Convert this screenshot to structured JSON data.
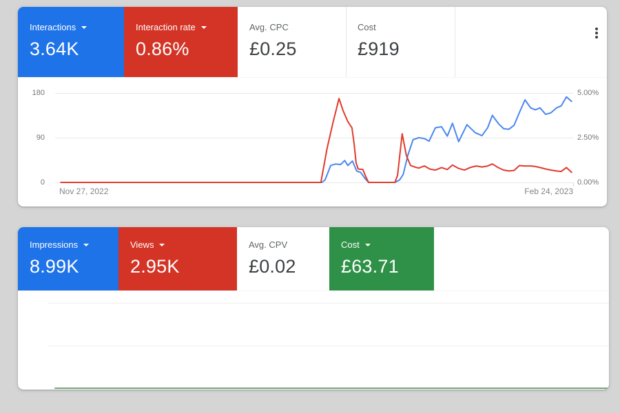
{
  "colors": {
    "page_bg": "#d5d5d5",
    "card_bg": "#ffffff",
    "tile_blue": "#1e73e8",
    "tile_red": "#d33426",
    "tile_green": "#2f9148",
    "line_blue": "#4a86ee",
    "line_red": "#e03a2c",
    "line_green": "#74a478",
    "axis_text": "#757575"
  },
  "top_card": {
    "tiles": [
      {
        "label": "Interactions",
        "value": "3.64K",
        "dropdown": true
      },
      {
        "label": "Interaction rate",
        "value": "0.86%",
        "dropdown": true
      },
      {
        "label": "Avg. CPC",
        "value": "£0.25",
        "dropdown": false
      },
      {
        "label": "Cost",
        "value": "£919",
        "dropdown": false
      }
    ],
    "menu_icon": "kebab-menu"
  },
  "bottom_card": {
    "tiles": [
      {
        "label": "Impressions",
        "value": "8.99K",
        "dropdown": true
      },
      {
        "label": "Views",
        "value": "2.95K",
        "dropdown": true
      },
      {
        "label": "Avg. CPV",
        "value": "£0.02",
        "dropdown": false
      },
      {
        "label": "Cost",
        "value": "£63.71",
        "dropdown": true
      }
    ]
  },
  "chart_data": [
    {
      "type": "line",
      "title": "",
      "grid": true,
      "legend": "none",
      "x_axis": {
        "start_label": "Nov 27, 2022",
        "end_label": "Feb 24, 2023"
      },
      "left_axis": {
        "ticks": [
          "180",
          "90",
          "0"
        ],
        "min": 0,
        "max": 180
      },
      "right_axis": {
        "ticks": [
          "5.00%",
          "2.50%",
          "0.00%"
        ],
        "min": 0,
        "max": 5
      },
      "series": [
        {
          "name": "Interactions",
          "axis": "left",
          "color": "#4a86ee",
          "points": [
            [
              1.1,
              0
            ],
            [
              51.5,
              0
            ],
            [
              52.1,
              5
            ],
            [
              53.2,
              34
            ],
            [
              54.1,
              37
            ],
            [
              55.1,
              36
            ],
            [
              55.9,
              44
            ],
            [
              56.5,
              34
            ],
            [
              57.4,
              43
            ],
            [
              58.2,
              23
            ],
            [
              59.0,
              20
            ],
            [
              59.8,
              8
            ],
            [
              60.5,
              0
            ],
            [
              65.6,
              0
            ],
            [
              66.5,
              5
            ],
            [
              67.2,
              16
            ],
            [
              68.1,
              55
            ],
            [
              69.1,
              86
            ],
            [
              70.2,
              90
            ],
            [
              71.3,
              88
            ],
            [
              72.2,
              83
            ],
            [
              73.4,
              110
            ],
            [
              74.6,
              112
            ],
            [
              75.7,
              93
            ],
            [
              76.7,
              119
            ],
            [
              77.9,
              82
            ],
            [
              79.5,
              116
            ],
            [
              81.1,
              100
            ],
            [
              82.4,
              94
            ],
            [
              83.5,
              110
            ],
            [
              84.4,
              135
            ],
            [
              85.6,
              118
            ],
            [
              86.6,
              108
            ],
            [
              87.6,
              107
            ],
            [
              88.6,
              115
            ],
            [
              89.6,
              140
            ],
            [
              90.7,
              166
            ],
            [
              91.8,
              150
            ],
            [
              92.7,
              146
            ],
            [
              93.6,
              150
            ],
            [
              94.7,
              137
            ],
            [
              95.7,
              140
            ],
            [
              96.8,
              150
            ],
            [
              97.7,
              154
            ],
            [
              98.7,
              172
            ],
            [
              99.7,
              163
            ]
          ]
        },
        {
          "name": "Interaction rate",
          "axis": "right",
          "color": "#e03a2c",
          "points": [
            [
              1.1,
              0
            ],
            [
              51.3,
              0
            ],
            [
              52.5,
              1.9
            ],
            [
              53.6,
              3.3
            ],
            [
              54.8,
              4.69
            ],
            [
              55.6,
              4.0
            ],
            [
              56.5,
              3.4
            ],
            [
              57.3,
              3.05
            ],
            [
              57.7,
              2.2
            ],
            [
              58.1,
              1.1
            ],
            [
              58.5,
              0.75
            ],
            [
              59.4,
              0.72
            ],
            [
              60.0,
              0.3
            ],
            [
              60.5,
              0
            ],
            [
              65.6,
              0
            ],
            [
              66.1,
              0.4
            ],
            [
              67.0,
              2.72
            ],
            [
              67.8,
              1.5
            ],
            [
              68.6,
              0.95
            ],
            [
              69.4,
              0.86
            ],
            [
              70.2,
              0.8
            ],
            [
              71.3,
              0.92
            ],
            [
              72.3,
              0.75
            ],
            [
              73.4,
              0.69
            ],
            [
              74.6,
              0.83
            ],
            [
              75.7,
              0.72
            ],
            [
              76.7,
              0.97
            ],
            [
              77.9,
              0.78
            ],
            [
              79.0,
              0.69
            ],
            [
              80.1,
              0.83
            ],
            [
              81.3,
              0.92
            ],
            [
              82.4,
              0.86
            ],
            [
              83.5,
              0.92
            ],
            [
              84.4,
              1.03
            ],
            [
              85.5,
              0.83
            ],
            [
              86.6,
              0.69
            ],
            [
              87.6,
              0.64
            ],
            [
              88.6,
              0.67
            ],
            [
              89.6,
              0.94
            ],
            [
              90.7,
              0.92
            ],
            [
              91.8,
              0.92
            ],
            [
              92.7,
              0.89
            ],
            [
              93.6,
              0.83
            ],
            [
              94.7,
              0.75
            ],
            [
              95.7,
              0.69
            ],
            [
              96.8,
              0.64
            ],
            [
              97.7,
              0.61
            ],
            [
              98.7,
              0.83
            ],
            [
              99.7,
              0.56
            ]
          ]
        }
      ]
    },
    {
      "type": "line",
      "title": "",
      "grid": true,
      "legend": "none",
      "x_axis": {
        "start_label": "",
        "end_label": ""
      },
      "left_axis": {
        "ticks": [],
        "min": 0,
        "max": 1
      },
      "series": [
        {
          "name": "Cost",
          "axis": "left",
          "color": "#74a478",
          "points": [
            [
              0,
              0
            ],
            [
              100,
              0
            ]
          ]
        }
      ]
    }
  ]
}
